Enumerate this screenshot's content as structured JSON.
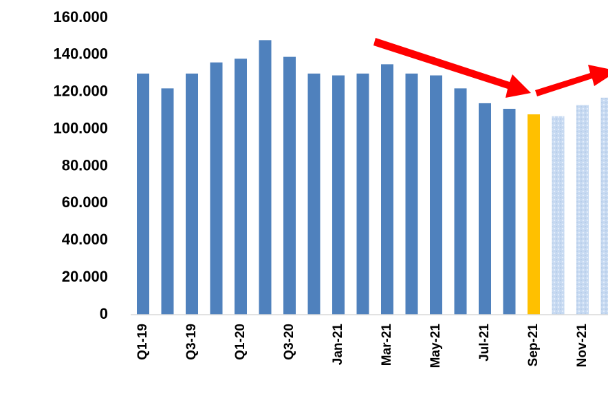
{
  "chart_data": {
    "type": "bar",
    "categories": [
      "Q1-19",
      null,
      "Q3-19",
      null,
      "Q1-20",
      null,
      "Q3-20",
      null,
      "Jan-21",
      null,
      "Mar-21",
      null,
      "May-21",
      null,
      "Jul-21",
      null,
      "Sep-21",
      null,
      "Nov-21",
      null
    ],
    "values": [
      130000,
      122000,
      130000,
      136000,
      138000,
      148000,
      139000,
      130000,
      129000,
      130000,
      135000,
      130000,
      129000,
      122000,
      114000,
      111000,
      108000,
      107000,
      113000,
      117000
    ],
    "colors": [
      "#4f81bd",
      "#4f81bd",
      "#4f81bd",
      "#4f81bd",
      "#4f81bd",
      "#4f81bd",
      "#4f81bd",
      "#4f81bd",
      "#4f81bd",
      "#4f81bd",
      "#4f81bd",
      "#4f81bd",
      "#4f81bd",
      "#4f81bd",
      "#4f81bd",
      "#4f81bd",
      "#ffc000",
      "#c6d9f1",
      "#c6d9f1",
      "#c6d9f1"
    ],
    "ylim": [
      0,
      160000
    ],
    "yticks": [
      {
        "value": 0,
        "label": "0"
      },
      {
        "value": 20000,
        "label": "20.000"
      },
      {
        "value": 40000,
        "label": "40.000"
      },
      {
        "value": 60000,
        "label": "60.000"
      },
      {
        "value": 80000,
        "label": "80.000"
      },
      {
        "value": 100000,
        "label": "100.000"
      },
      {
        "value": 120000,
        "label": "120.000"
      },
      {
        "value": 140000,
        "label": "140.000"
      },
      {
        "value": 160000,
        "label": "160.000"
      }
    ],
    "grid": false
  }
}
